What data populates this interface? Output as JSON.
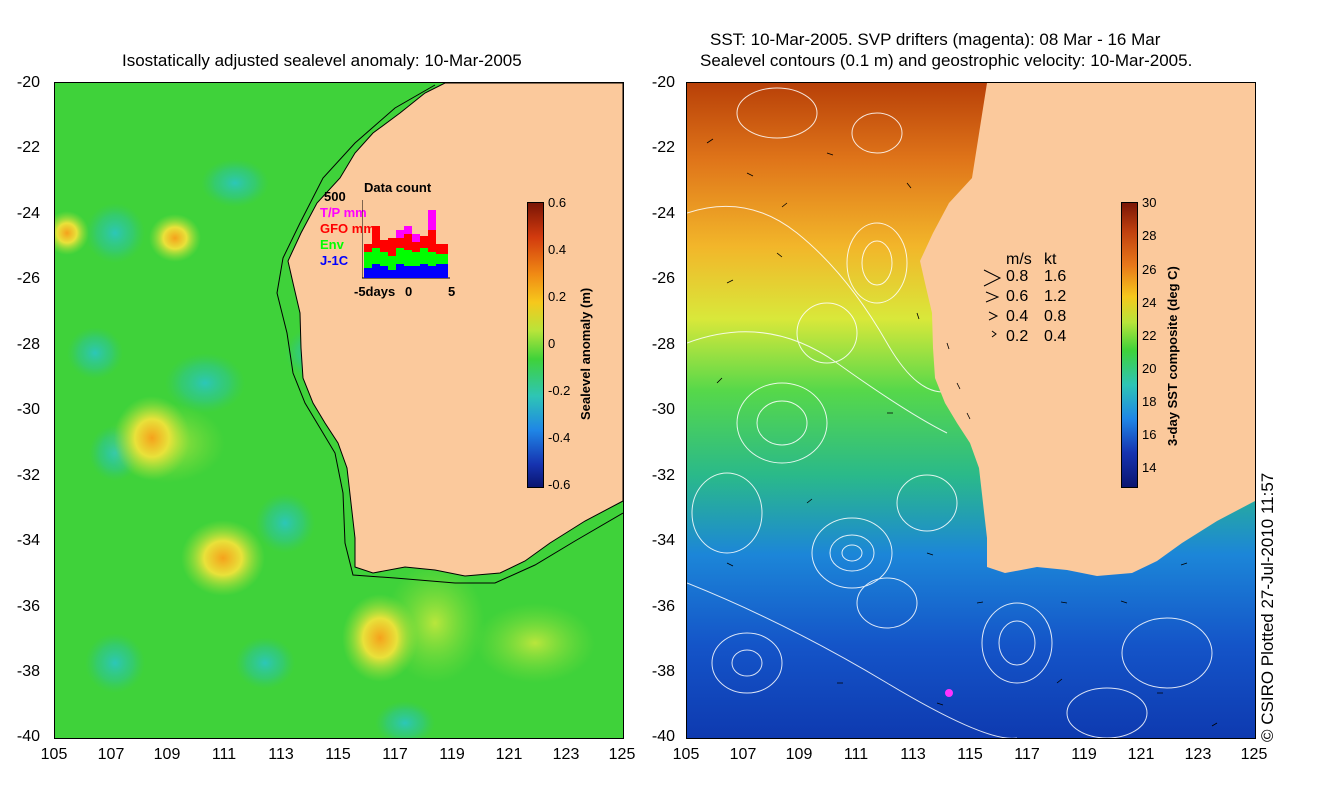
{
  "left_panel": {
    "title": "Isostatically adjusted sealevel anomaly: 10-Mar-2005",
    "yticks": [
      "-20",
      "-22",
      "-24",
      "-26",
      "-28",
      "-30",
      "-32",
      "-34",
      "-36",
      "-38",
      "-40"
    ],
    "xticks": [
      "105",
      "107",
      "109",
      "111",
      "113",
      "115",
      "117",
      "119",
      "121",
      "123",
      "125"
    ],
    "colorbar": {
      "label": "Sealevel anomaly (m)",
      "ticks": [
        "0.6",
        "0.4",
        "0.2",
        "0",
        "-0.2",
        "-0.4",
        "-0.6"
      ]
    },
    "inset": {
      "title": "Data count",
      "ymax_label": "500",
      "series": [
        {
          "name": "T/P mm",
          "color": "#ff00ff"
        },
        {
          "name": "GFO mm",
          "color": "#ff0000"
        },
        {
          "name": "Env",
          "color": "#00ff00"
        },
        {
          "name": "J-1C",
          "color": "#0000ff"
        }
      ],
      "xlabel_left": "-5days",
      "xlabel_mid": "0",
      "xlabel_right": "5"
    }
  },
  "right_panel": {
    "title_line1": "SST: 10-Mar-2005. SVP drifters (magenta): 08 Mar - 16 Mar",
    "title_line2": "Sealevel contours (0.1 m) and geostrophic velocity: 10-Mar-2005.",
    "yticks": [
      "-20",
      "-22",
      "-24",
      "-26",
      "-28",
      "-30",
      "-32",
      "-34",
      "-36",
      "-38",
      "-40"
    ],
    "xticks": [
      "105",
      "107",
      "109",
      "111",
      "113",
      "115",
      "117",
      "119",
      "121",
      "123",
      "125"
    ],
    "colorbar": {
      "label": "3-day SST composite (deg C)",
      "ticks": [
        "30",
        "28",
        "26",
        "24",
        "22",
        "20",
        "18",
        "16",
        "14"
      ]
    },
    "velocity_legend": {
      "header_ms": "m/s",
      "header_kt": "kt",
      "rows": [
        {
          "ms": "0.8",
          "kt": "1.6"
        },
        {
          "ms": "0.6",
          "kt": "1.2"
        },
        {
          "ms": "0.4",
          "kt": "0.8"
        },
        {
          "ms": "0.2",
          "kt": "0.4"
        }
      ]
    }
  },
  "copyright": "© CSIRO Plotted 27-Jul-2010 11:57",
  "colors": {
    "land": "#fbc99c",
    "ocean_anomaly_base": "#3fd23a",
    "coast_line": "#000000"
  }
}
